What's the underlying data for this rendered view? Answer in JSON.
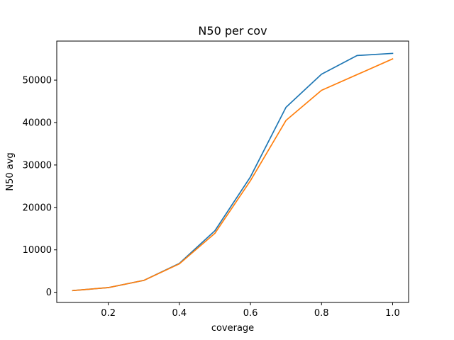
{
  "chart_data": {
    "type": "line",
    "title": "N50 per cov",
    "xlabel": "coverage",
    "ylabel": "N50 avg",
    "xlim": [
      0.055,
      1.045
    ],
    "ylim": [
      -2400,
      59200
    ],
    "xticks": [
      0.2,
      0.4,
      0.6,
      0.8,
      1.0
    ],
    "xtick_labels": [
      "0.2",
      "0.4",
      "0.6",
      "0.8",
      "1.0"
    ],
    "yticks": [
      0,
      10000,
      20000,
      30000,
      40000,
      50000
    ],
    "ytick_labels": [
      "0",
      "10000",
      "20000",
      "30000",
      "40000",
      "50000"
    ],
    "grid": false,
    "legend": "none",
    "x": [
      0.1,
      0.2,
      0.3,
      0.4,
      0.5,
      0.6,
      0.7,
      0.8,
      0.9,
      1.0
    ],
    "series": [
      {
        "color": "#1f77b4",
        "values": [
          400,
          1100,
          2800,
          6800,
          14500,
          27200,
          43600,
          51400,
          55800,
          56300
        ]
      },
      {
        "color": "#ff7f0e",
        "values": [
          400,
          1100,
          2800,
          6700,
          13900,
          26300,
          40500,
          47600,
          51300,
          55000
        ]
      }
    ]
  }
}
